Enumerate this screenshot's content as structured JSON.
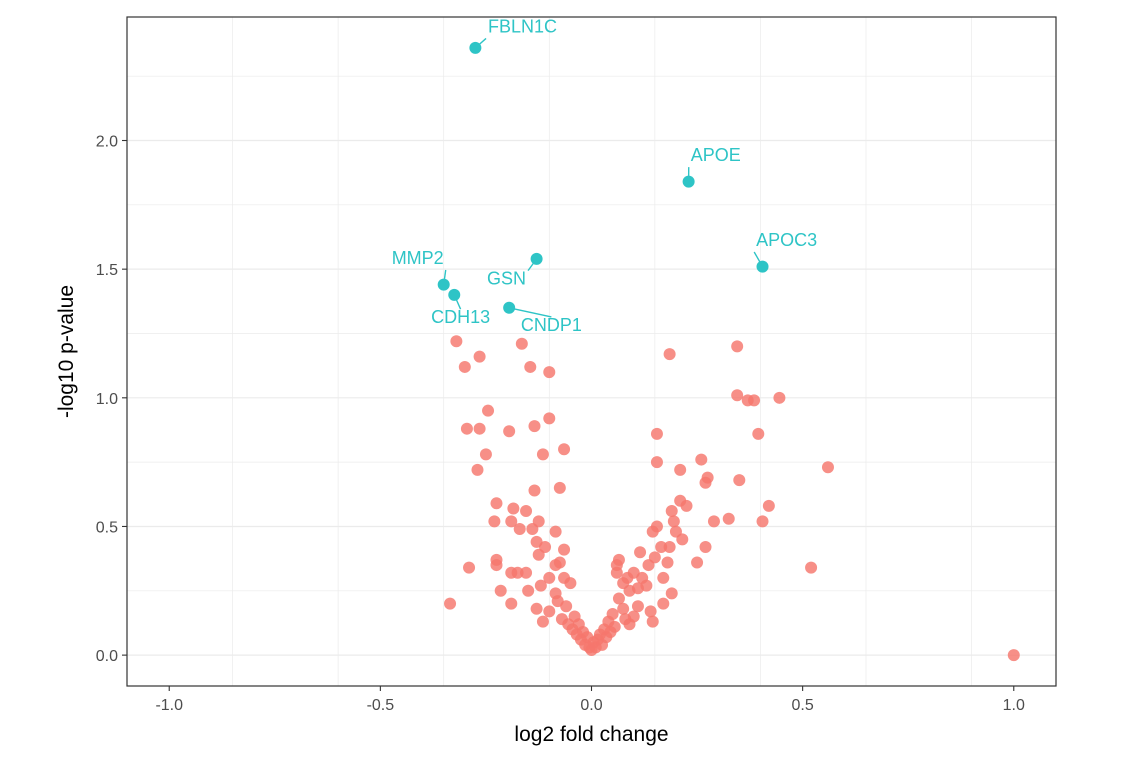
{
  "chart_data": {
    "type": "scatter",
    "title": "",
    "xlabel": "log2 fold change",
    "ylabel": "-log10 p-value",
    "xlim": [
      -1.1,
      1.1
    ],
    "ylim": [
      -0.12,
      2.48
    ],
    "x_ticks": [
      -1.0,
      -0.5,
      0.0,
      0.5,
      1.0
    ],
    "x_tick_labels": [
      "-1.0",
      "-0.5",
      "0.0",
      "0.5",
      "1.0"
    ],
    "y_ticks": [
      0.0,
      0.5,
      1.0,
      1.5,
      2.0
    ],
    "y_tick_labels": [
      "0.0",
      "0.5",
      "1.0",
      "1.5",
      "2.0"
    ],
    "grid": true,
    "legend": "none",
    "colors": {
      "significant": "#2ec4c6",
      "not_significant": "#f5766d",
      "grid": "#ebebeb",
      "axis": "#333333"
    },
    "series": [
      {
        "group": "significant",
        "points": [
          {
            "x": -0.275,
            "y": 2.36,
            "label": "FBLN1C"
          },
          {
            "x": 0.23,
            "y": 1.84,
            "label": "APOE"
          },
          {
            "x": 0.405,
            "y": 1.51,
            "label": "APOC3"
          },
          {
            "x": -0.13,
            "y": 1.54,
            "label": "GSN"
          },
          {
            "x": -0.35,
            "y": 1.44,
            "label": "MMP2"
          },
          {
            "x": -0.325,
            "y": 1.4,
            "label": "CDH13"
          },
          {
            "x": -0.195,
            "y": 1.35,
            "label": "CNDP1"
          }
        ]
      },
      {
        "group": "not_significant",
        "points": [
          {
            "x": -0.32,
            "y": 1.22
          },
          {
            "x": -0.265,
            "y": 1.16
          },
          {
            "x": -0.3,
            "y": 1.12
          },
          {
            "x": -0.165,
            "y": 1.21
          },
          {
            "x": -0.145,
            "y": 1.12
          },
          {
            "x": -0.1,
            "y": 1.1
          },
          {
            "x": -0.245,
            "y": 0.95
          },
          {
            "x": -0.295,
            "y": 0.88
          },
          {
            "x": -0.265,
            "y": 0.88
          },
          {
            "x": -0.195,
            "y": 0.87
          },
          {
            "x": -0.135,
            "y": 0.89
          },
          {
            "x": -0.1,
            "y": 0.92
          },
          {
            "x": -0.25,
            "y": 0.78
          },
          {
            "x": -0.27,
            "y": 0.72
          },
          {
            "x": -0.115,
            "y": 0.78
          },
          {
            "x": -0.065,
            "y": 0.8
          },
          {
            "x": -0.225,
            "y": 0.59
          },
          {
            "x": -0.135,
            "y": 0.64
          },
          {
            "x": -0.075,
            "y": 0.65
          },
          {
            "x": -0.185,
            "y": 0.57
          },
          {
            "x": -0.155,
            "y": 0.56
          },
          {
            "x": -0.23,
            "y": 0.52
          },
          {
            "x": -0.19,
            "y": 0.52
          },
          {
            "x": -0.17,
            "y": 0.49
          },
          {
            "x": -0.125,
            "y": 0.52
          },
          {
            "x": -0.14,
            "y": 0.49
          },
          {
            "x": -0.085,
            "y": 0.48
          },
          {
            "x": -0.225,
            "y": 0.37
          },
          {
            "x": -0.225,
            "y": 0.35
          },
          {
            "x": -0.175,
            "y": 0.32
          },
          {
            "x": -0.19,
            "y": 0.32
          },
          {
            "x": -0.155,
            "y": 0.32
          },
          {
            "x": -0.13,
            "y": 0.44
          },
          {
            "x": -0.125,
            "y": 0.39
          },
          {
            "x": -0.11,
            "y": 0.42
          },
          {
            "x": -0.065,
            "y": 0.41
          },
          {
            "x": -0.075,
            "y": 0.36
          },
          {
            "x": -0.085,
            "y": 0.35
          },
          {
            "x": -0.29,
            "y": 0.34
          },
          {
            "x": -0.215,
            "y": 0.25
          },
          {
            "x": -0.15,
            "y": 0.25
          },
          {
            "x": -0.12,
            "y": 0.27
          },
          {
            "x": -0.1,
            "y": 0.3
          },
          {
            "x": -0.085,
            "y": 0.24
          },
          {
            "x": -0.065,
            "y": 0.3
          },
          {
            "x": -0.05,
            "y": 0.28
          },
          {
            "x": -0.19,
            "y": 0.2
          },
          {
            "x": -0.13,
            "y": 0.18
          },
          {
            "x": -0.115,
            "y": 0.13
          },
          {
            "x": -0.1,
            "y": 0.17
          },
          {
            "x": -0.08,
            "y": 0.21
          },
          {
            "x": -0.07,
            "y": 0.14
          },
          {
            "x": -0.06,
            "y": 0.19
          },
          {
            "x": -0.055,
            "y": 0.12
          },
          {
            "x": -0.045,
            "y": 0.1
          },
          {
            "x": -0.04,
            "y": 0.15
          },
          {
            "x": -0.035,
            "y": 0.08
          },
          {
            "x": -0.03,
            "y": 0.12
          },
          {
            "x": -0.025,
            "y": 0.06
          },
          {
            "x": -0.02,
            "y": 0.09
          },
          {
            "x": -0.015,
            "y": 0.04
          },
          {
            "x": -0.01,
            "y": 0.07
          },
          {
            "x": -0.005,
            "y": 0.03
          },
          {
            "x": 0.0,
            "y": 0.02
          },
          {
            "x": 0.005,
            "y": 0.05
          },
          {
            "x": 0.01,
            "y": 0.03
          },
          {
            "x": 0.015,
            "y": 0.06
          },
          {
            "x": 0.02,
            "y": 0.08
          },
          {
            "x": 0.025,
            "y": 0.04
          },
          {
            "x": 0.03,
            "y": 0.1
          },
          {
            "x": 0.035,
            "y": 0.07
          },
          {
            "x": 0.04,
            "y": 0.13
          },
          {
            "x": 0.045,
            "y": 0.09
          },
          {
            "x": 0.05,
            "y": 0.16
          },
          {
            "x": 0.055,
            "y": 0.11
          },
          {
            "x": -0.335,
            "y": 0.2
          },
          {
            "x": 0.06,
            "y": 0.35
          },
          {
            "x": 0.065,
            "y": 0.37
          },
          {
            "x": 0.06,
            "y": 0.32
          },
          {
            "x": 0.065,
            "y": 0.22
          },
          {
            "x": 0.075,
            "y": 0.28
          },
          {
            "x": 0.085,
            "y": 0.3
          },
          {
            "x": 0.09,
            "y": 0.25
          },
          {
            "x": 0.1,
            "y": 0.32
          },
          {
            "x": 0.11,
            "y": 0.26
          },
          {
            "x": 0.115,
            "y": 0.4
          },
          {
            "x": 0.12,
            "y": 0.3
          },
          {
            "x": 0.13,
            "y": 0.27
          },
          {
            "x": 0.135,
            "y": 0.35
          },
          {
            "x": 0.145,
            "y": 0.48
          },
          {
            "x": 0.15,
            "y": 0.38
          },
          {
            "x": 0.155,
            "y": 0.5
          },
          {
            "x": 0.165,
            "y": 0.42
          },
          {
            "x": 0.17,
            "y": 0.3
          },
          {
            "x": 0.18,
            "y": 0.36
          },
          {
            "x": 0.185,
            "y": 0.42
          },
          {
            "x": 0.19,
            "y": 0.24
          },
          {
            "x": 0.19,
            "y": 0.56
          },
          {
            "x": 0.195,
            "y": 0.52
          },
          {
            "x": 0.2,
            "y": 0.48
          },
          {
            "x": 0.21,
            "y": 0.6
          },
          {
            "x": 0.215,
            "y": 0.45
          },
          {
            "x": 0.225,
            "y": 0.58
          },
          {
            "x": 0.25,
            "y": 0.36
          },
          {
            "x": 0.26,
            "y": 0.76
          },
          {
            "x": 0.27,
            "y": 0.42
          },
          {
            "x": 0.27,
            "y": 0.67
          },
          {
            "x": 0.275,
            "y": 0.69
          },
          {
            "x": 0.29,
            "y": 0.52
          },
          {
            "x": 0.325,
            "y": 0.53
          },
          {
            "x": 0.35,
            "y": 0.68
          },
          {
            "x": 0.155,
            "y": 0.86
          },
          {
            "x": 0.155,
            "y": 0.75
          },
          {
            "x": 0.21,
            "y": 0.72
          },
          {
            "x": 0.185,
            "y": 1.17
          },
          {
            "x": 0.345,
            "y": 1.2
          },
          {
            "x": 0.345,
            "y": 1.01
          },
          {
            "x": 0.37,
            "y": 0.99
          },
          {
            "x": 0.385,
            "y": 0.99
          },
          {
            "x": 0.445,
            "y": 1.0
          },
          {
            "x": 0.395,
            "y": 0.86
          },
          {
            "x": 0.56,
            "y": 0.73
          },
          {
            "x": 0.42,
            "y": 0.58
          },
          {
            "x": 0.405,
            "y": 0.52
          },
          {
            "x": 0.52,
            "y": 0.34
          },
          {
            "x": 1.0,
            "y": 0.0
          },
          {
            "x": 0.1,
            "y": 0.15
          },
          {
            "x": 0.09,
            "y": 0.12
          },
          {
            "x": 0.14,
            "y": 0.17
          },
          {
            "x": 0.145,
            "y": 0.13
          },
          {
            "x": 0.17,
            "y": 0.2
          },
          {
            "x": 0.11,
            "y": 0.19
          },
          {
            "x": 0.075,
            "y": 0.18
          },
          {
            "x": 0.08,
            "y": 0.14
          }
        ]
      }
    ],
    "labels": [
      {
        "text": "FBLN1C",
        "x": -0.245,
        "y": 2.42,
        "anchor": "start"
      },
      {
        "text": "APOE",
        "x": 0.235,
        "y": 1.92,
        "anchor": "start"
      },
      {
        "text": "APOC3",
        "x": 0.39,
        "y": 1.59,
        "anchor": "start"
      },
      {
        "text": "GSN",
        "x": -0.155,
        "y": 1.44,
        "anchor": "end"
      },
      {
        "text": "MMP2",
        "x": -0.35,
        "y": 1.52,
        "anchor": "end"
      },
      {
        "text": "CDH13",
        "x": -0.31,
        "y": 1.29,
        "anchor": "middle"
      },
      {
        "text": "CNDP1",
        "x": -0.095,
        "y": 1.26,
        "anchor": "middle"
      }
    ]
  }
}
